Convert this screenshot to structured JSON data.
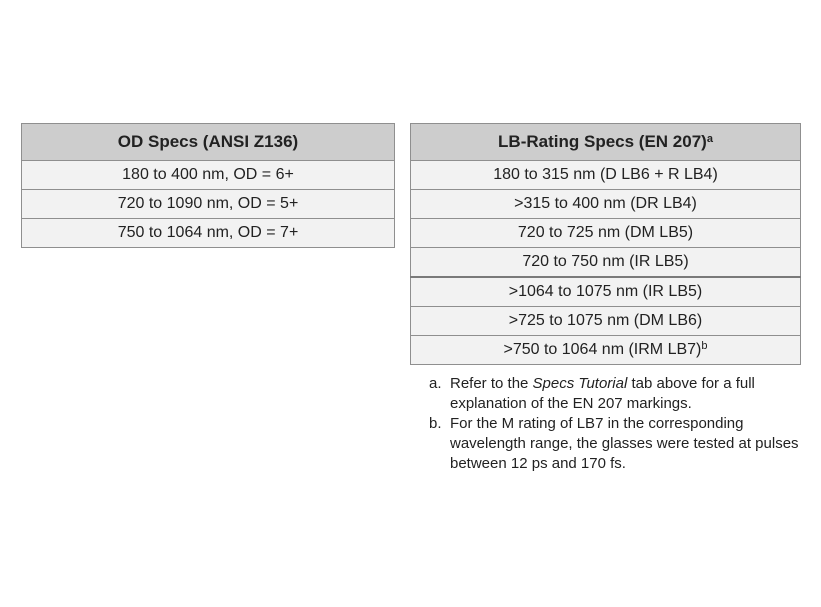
{
  "od_table": {
    "header": "OD Specs (ANSI Z136)",
    "rows": [
      "180 to 400 nm, OD = 6+",
      "720 to 1090 nm, OD = 5+",
      "750 to 1064 nm, OD = 7+"
    ]
  },
  "lb_table": {
    "header": "LB-Rating Specs (EN 207)",
    "header_sup": "a",
    "rows": [
      {
        "text": "180 to 315 nm (D LB6 + R LB4)",
        "sup": ""
      },
      {
        "text": ">315 to 400 nm (DR LB4)",
        "sup": ""
      },
      {
        "text": "720 to 725 nm (DM LB5)",
        "sup": ""
      },
      {
        "text": "720 to 750 nm (IR LB5)",
        "sup": ""
      },
      {
        "text": ">1064 to 1075 nm (IR LB5)",
        "sup": ""
      },
      {
        "text": ">725 to 1075 nm (DM LB6)",
        "sup": ""
      },
      {
        "text": ">750 to 1064 nm (IRM LB7)",
        "sup": "b"
      }
    ]
  },
  "footnotes": [
    {
      "marker": "a.",
      "before": "Refer to the ",
      "emphasis": "Specs Tutorial",
      "after": " tab above for a full explanation of the EN 207 markings."
    },
    {
      "marker": "b.",
      "text": "For the M rating of LB7 in the corresponding wavelength range, the glasses were tested at pulses between 12 ps and 170 fs."
    }
  ]
}
